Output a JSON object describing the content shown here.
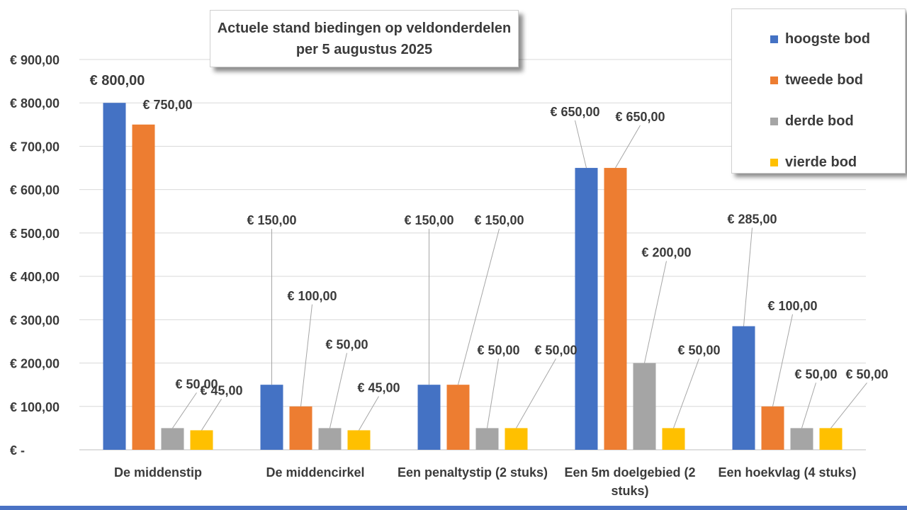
{
  "chart_data": {
    "type": "bar",
    "title_lines": [
      "Actuele stand biedingen op veldonderdelen",
      "per 5 augustus 2025"
    ],
    "categories": [
      [
        "De middenstip"
      ],
      [
        "De middencirkel"
      ],
      [
        "Een penaltystip   (2 stuks)"
      ],
      [
        "Een 5m doelgebied   (2",
        "stuks)"
      ],
      [
        "Een hoekvlag (4 stuks)"
      ]
    ],
    "series": [
      {
        "name": "hoogste bod",
        "color": "#4472C4",
        "values": [
          800,
          150,
          150,
          650,
          285
        ],
        "labels": [
          "€ 800,00",
          "€ 150,00",
          "€ 150,00",
          "€ 650,00",
          "€ 285,00"
        ]
      },
      {
        "name": "tweede bod",
        "color": "#ED7D31",
        "values": [
          750,
          100,
          150,
          650,
          100
        ],
        "labels": [
          "€ 750,00",
          "€ 100,00",
          "€ 150,00",
          "€ 650,00",
          "€ 100,00"
        ]
      },
      {
        "name": "derde bod",
        "color": "#A5A5A5",
        "values": [
          50,
          50,
          50,
          200,
          50
        ],
        "labels": [
          "€ 50,00",
          "€ 50,00",
          "€ 50,00",
          "€ 200,00",
          "€ 50,00"
        ]
      },
      {
        "name": "vierde bod",
        "color": "#FFC000",
        "values": [
          45,
          45,
          50,
          50,
          50
        ],
        "labels": [
          "€ 45,00",
          "€ 45,00",
          "€ 50,00",
          "€ 50,00",
          "€ 50,00"
        ]
      }
    ],
    "y_ticks": [
      {
        "value": 0,
        "label": "€ -"
      },
      {
        "value": 100,
        "label": "€ 100,00"
      },
      {
        "value": 200,
        "label": "€ 200,00"
      },
      {
        "value": 300,
        "label": "€ 300,00"
      },
      {
        "value": 400,
        "label": "€ 400,00"
      },
      {
        "value": 500,
        "label": "€ 500,00"
      },
      {
        "value": 600,
        "label": "€ 600,00"
      },
      {
        "value": 700,
        "label": "€ 700,00"
      },
      {
        "value": 800,
        "label": "€ 800,00"
      },
      {
        "value": 900,
        "label": "€ 900,00"
      }
    ],
    "ylim": [
      0,
      900
    ],
    "grid": true,
    "legend_position": "top-right"
  }
}
